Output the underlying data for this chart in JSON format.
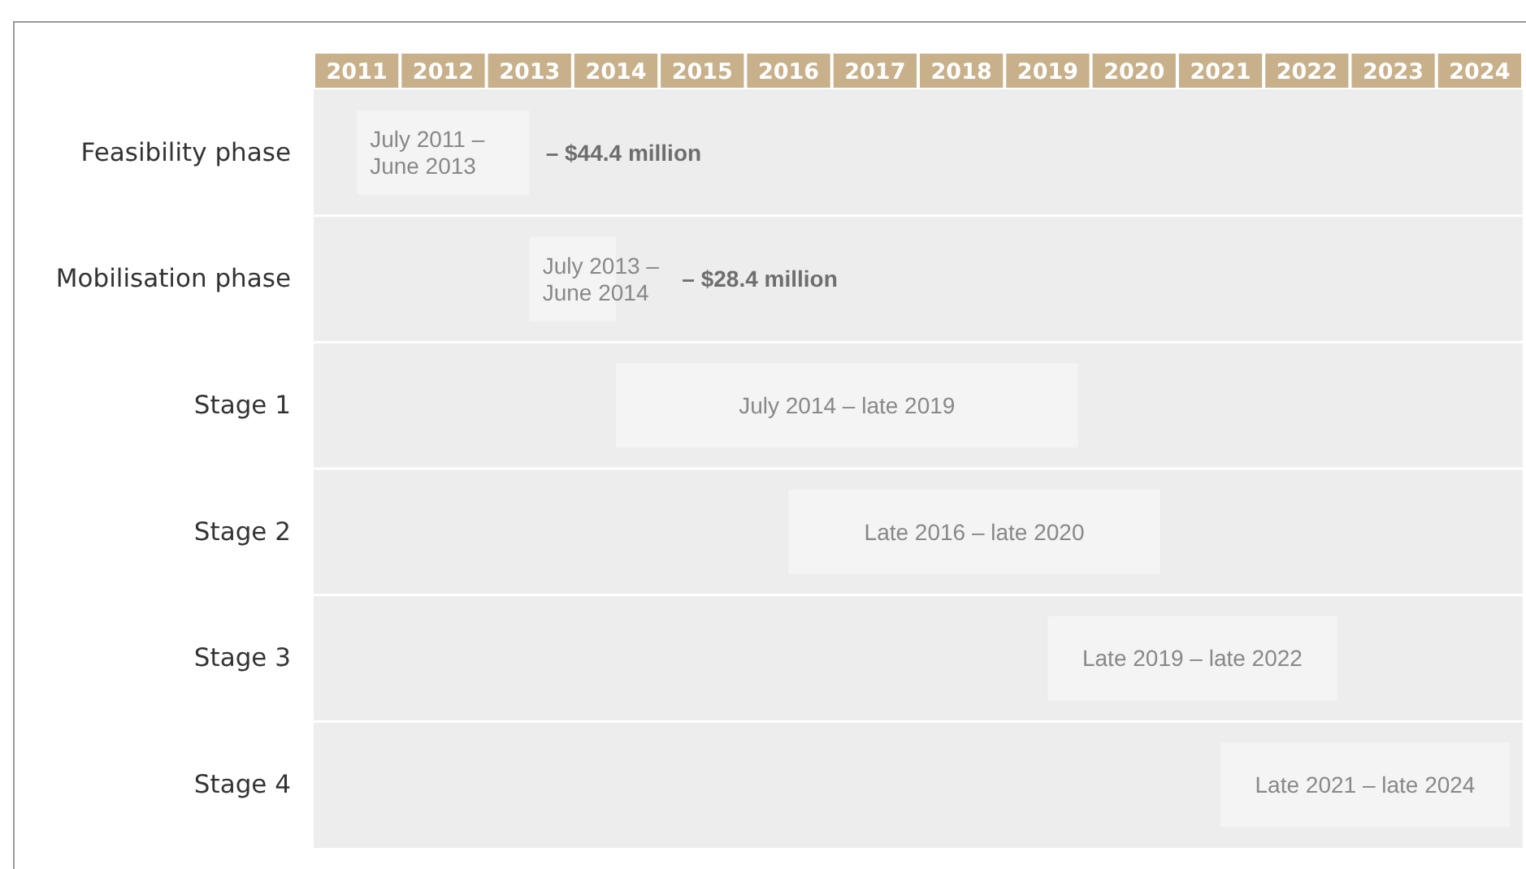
{
  "chart_data": {
    "type": "bar",
    "orientation": "horizontal",
    "categories": [
      "Feasibility phase",
      "Mobilisation phase",
      "Stage 1",
      "Stage 2",
      "Stage 3",
      "Stage 4"
    ],
    "base": [
      2011.5,
      2013.5,
      2014.5,
      2016.5,
      2019.5,
      2021.5
    ],
    "values": [
      2,
      1,
      5.35,
      4.3,
      3.35,
      3.35
    ],
    "value_labels": [
      "July 2011 – June 2013",
      "July 2013 – June 2014",
      "July 2014 – late 2019",
      "Late 2016 – late 2020",
      "Late 2019 – late 2022",
      "Late 2021 – late 2024"
    ],
    "color": "#f4f4f4",
    "xlim": [
      2011,
      2025
    ],
    "xticks": [
      {
        "value": 2011.5,
        "label": "2011"
      },
      {
        "value": 2012.5,
        "label": "2012"
      },
      {
        "value": 2013.5,
        "label": "2013"
      },
      {
        "value": 2014.5,
        "label": "2014"
      },
      {
        "value": 2015.5,
        "label": "2015"
      },
      {
        "value": 2016.5,
        "label": "2016"
      },
      {
        "value": 2017.5,
        "label": "2017"
      },
      {
        "value": 2018.5,
        "label": "2018"
      },
      {
        "value": 2019.5,
        "label": "2019"
      },
      {
        "value": 2020.5,
        "label": "2020"
      },
      {
        "value": 2021.5,
        "label": "2021"
      },
      {
        "value": 2022.5,
        "label": "2022"
      },
      {
        "value": 2023.5,
        "label": "2023"
      },
      {
        "value": 2024.5,
        "label": "2024"
      }
    ],
    "annotations": [
      {
        "text": "– $44.4 million",
        "x": 2013.5,
        "y": "Feasibility phase"
      },
      {
        "text": "– $28.4 million",
        "x": 2014.5,
        "y": "Mobilisation phase"
      }
    ]
  }
}
